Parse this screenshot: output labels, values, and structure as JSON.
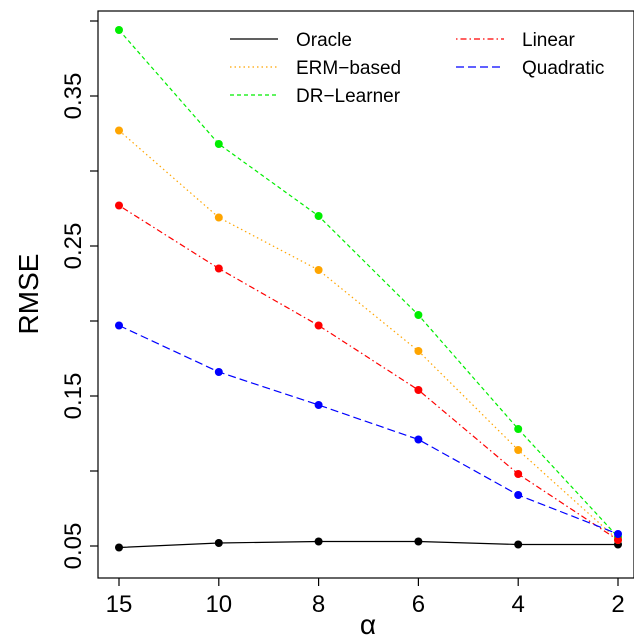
{
  "chart_data": {
    "type": "line",
    "title": "",
    "xlabel": "α",
    "ylabel": "RMSE",
    "categories": [
      "15",
      "10",
      "8",
      "6",
      "4",
      "2"
    ],
    "ylim": [
      0.05,
      0.4
    ],
    "yticks": [
      "0.05",
      "0.15",
      "0.25",
      "0.35"
    ],
    "grid": false,
    "legend_position": "top-right",
    "series": [
      {
        "name": "Oracle",
        "color": "#000000",
        "dash": "solid",
        "values": [
          0.049,
          0.052,
          0.053,
          0.053,
          0.051,
          0.051
        ]
      },
      {
        "name": "ERM−based",
        "color": "#FFA500",
        "dash": "dotted",
        "values": [
          0.327,
          0.269,
          0.234,
          0.18,
          0.114,
          0.054
        ]
      },
      {
        "name": "DR−Learner",
        "color": "#00EE00",
        "dash": "dashed",
        "values": [
          0.394,
          0.318,
          0.27,
          0.204,
          0.128,
          0.056
        ]
      },
      {
        "name": "Linear",
        "color": "#FF0000",
        "dash": "dotdash",
        "values": [
          0.277,
          0.235,
          0.197,
          0.154,
          0.098,
          0.054
        ]
      },
      {
        "name": "Quadratic",
        "color": "#0000FF",
        "dash": "longdash",
        "values": [
          0.197,
          0.166,
          0.144,
          0.121,
          0.084,
          0.058
        ]
      }
    ]
  }
}
